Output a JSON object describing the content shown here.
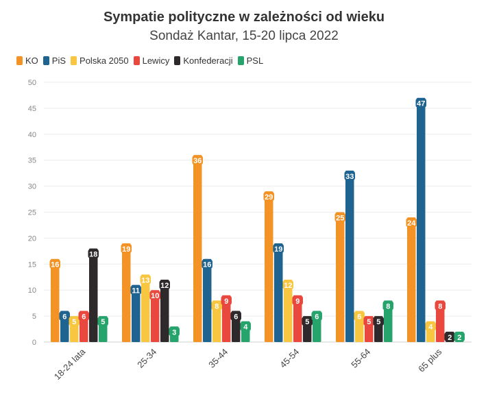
{
  "chart_data": {
    "type": "bar",
    "title": "Sympatie polityczne w zależności od wieku",
    "subtitle": "Sondaż Kantar, 15-20 lipca 2022",
    "categories": [
      "18-24 lata",
      "25-34",
      "35-44",
      "45-54",
      "55-64",
      "65 plus"
    ],
    "series": [
      {
        "name": "KO",
        "color": "#f39325",
        "values": [
          16,
          19,
          36,
          29,
          25,
          24
        ]
      },
      {
        "name": "PiS",
        "color": "#1f6390",
        "values": [
          6,
          11,
          16,
          19,
          33,
          47
        ]
      },
      {
        "name": "Polska 2050",
        "color": "#f8c640",
        "values": [
          5,
          13,
          8,
          12,
          6,
          4
        ]
      },
      {
        "name": "Lewicy",
        "color": "#e9483e",
        "values": [
          6,
          10,
          9,
          9,
          5,
          8
        ]
      },
      {
        "name": "Konfederacji",
        "color": "#2e2a2b",
        "values": [
          18,
          12,
          6,
          5,
          5,
          2
        ]
      },
      {
        "name": "PSL",
        "color": "#27a36c",
        "values": [
          5,
          3,
          4,
          6,
          8,
          2
        ]
      }
    ],
    "ylim": [
      0,
      50
    ],
    "yticks": [
      0,
      5,
      10,
      15,
      20,
      25,
      30,
      35,
      40,
      45,
      50
    ],
    "grid": true,
    "legend_position": "top-left"
  }
}
